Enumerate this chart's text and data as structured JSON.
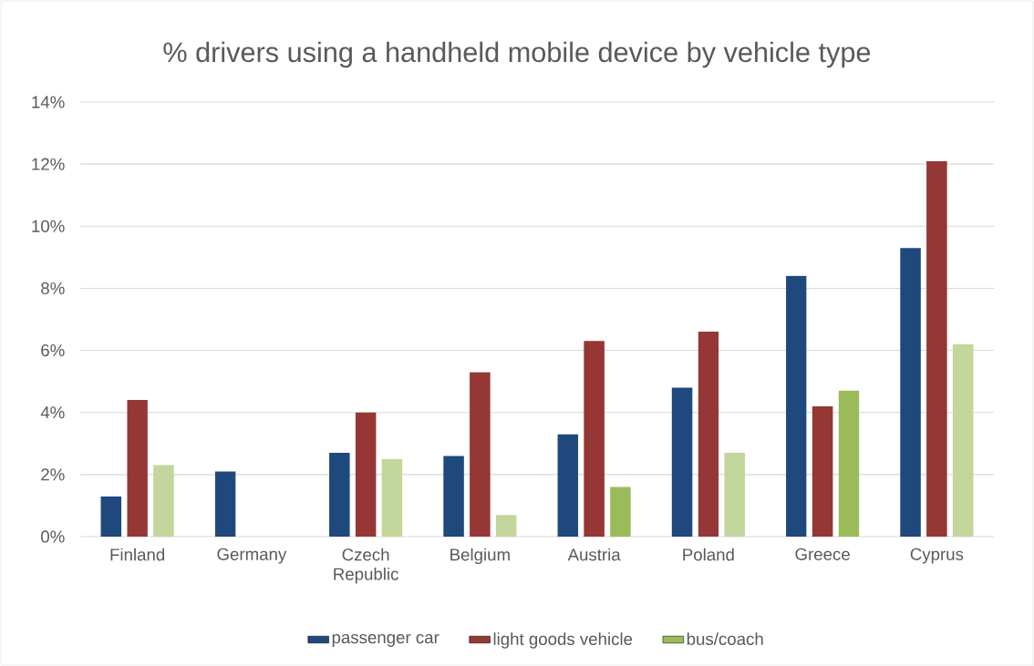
{
  "chart_data": {
    "type": "bar",
    "title": "% drivers using a handheld mobile device by vehicle type",
    "categories": [
      "Finland",
      "Germany",
      "Czech Republic",
      "Belgium",
      "Austria",
      "Poland",
      "Greece",
      "Cyprus"
    ],
    "series": [
      {
        "name": "passenger car",
        "color": "#1f497d",
        "values": [
          1.3,
          2.1,
          2.7,
          2.6,
          3.3,
          4.8,
          8.4,
          9.3
        ]
      },
      {
        "name": "light goods vehicle",
        "color": "#953735",
        "values": [
          4.4,
          null,
          4.0,
          5.3,
          6.3,
          6.6,
          4.2,
          12.1
        ]
      },
      {
        "name": "bus/coach",
        "color": "#9bbb59",
        "colors": [
          "#c3d69b",
          "#c3d69b",
          "#c3d69b",
          "#c3d69b",
          "#9bbb59",
          "#c3d69b",
          "#9bbb59",
          "#c3d69b"
        ],
        "values": [
          2.3,
          null,
          2.5,
          0.7,
          1.6,
          2.7,
          4.7,
          6.2
        ]
      }
    ],
    "ylim": [
      0,
      14
    ],
    "yticks": [
      {
        "value": 0,
        "label": "0%"
      },
      {
        "value": 2,
        "label": "2%"
      },
      {
        "value": 4,
        "label": "4%"
      },
      {
        "value": 6,
        "label": "6%"
      },
      {
        "value": 8,
        "label": "8%"
      },
      {
        "value": 10,
        "label": "10%"
      },
      {
        "value": 12,
        "label": "12%"
      },
      {
        "value": 14,
        "label": "14%"
      }
    ],
    "grid": "y",
    "legend": "bottom"
  }
}
